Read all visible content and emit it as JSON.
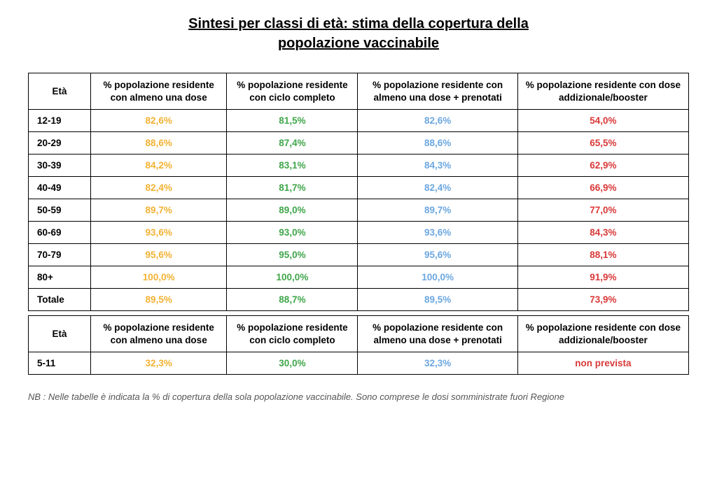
{
  "title_line1": "Sintesi per classi di età: stima della copertura della",
  "title_line2": "popolazione vaccinabile",
  "headers": {
    "age": "Età",
    "col1": "% popolazione residente con almeno una dose",
    "col2": "% popolazione residente con ciclo completo",
    "col3": "% popolazione residente con almeno una dose + prenotati",
    "col4": "% popolazione residente con dose addizionale/booster"
  },
  "colors": {
    "col1": "#f2b233",
    "col2": "#3fa64a",
    "col3": "#6ca7e0",
    "col4": "#d93838",
    "text": "#000000",
    "border": "#000000",
    "background": "#ffffff",
    "footnote": "#555555"
  },
  "typography": {
    "title_fontsize_pt": 15,
    "cell_fontsize_pt": 10,
    "font_family": "Arial"
  },
  "main_rows": [
    {
      "age": "12-19",
      "c1": "82,6%",
      "c2": "81,5%",
      "c3": "82,6%",
      "c4": "54,0%"
    },
    {
      "age": "20-29",
      "c1": "88,6%",
      "c2": "87,4%",
      "c3": "88,6%",
      "c4": "65,5%"
    },
    {
      "age": "30-39",
      "c1": "84,2%",
      "c2": "83,1%",
      "c3": "84,3%",
      "c4": "62,9%"
    },
    {
      "age": "40-49",
      "c1": "82,4%",
      "c2": "81,7%",
      "c3": "82,4%",
      "c4": "66,9%"
    },
    {
      "age": "50-59",
      "c1": "89,7%",
      "c2": "89,0%",
      "c3": "89,7%",
      "c4": "77,0%"
    },
    {
      "age": "60-69",
      "c1": "93,6%",
      "c2": "93,0%",
      "c3": "93,6%",
      "c4": "84,3%"
    },
    {
      "age": "70-79",
      "c1": "95,6%",
      "c2": "95,0%",
      "c3": "95,6%",
      "c4": "88,1%"
    },
    {
      "age": "80+",
      "c1": "100,0%",
      "c2": "100,0%",
      "c3": "100,0%",
      "c4": "91,9%"
    },
    {
      "age": "Totale",
      "c1": "89,5%",
      "c2": "88,7%",
      "c3": "89,5%",
      "c4": "73,9%"
    }
  ],
  "sub_rows": [
    {
      "age": "5-11",
      "c1": "32,3%",
      "c2": "30,0%",
      "c3": "32,3%",
      "c4": "non prevista"
    }
  ],
  "footnote": "NB : Nelle tabelle è indicata la % di copertura della sola popolazione vaccinabile. Sono comprese le dosi somministrate fuori Regione"
}
